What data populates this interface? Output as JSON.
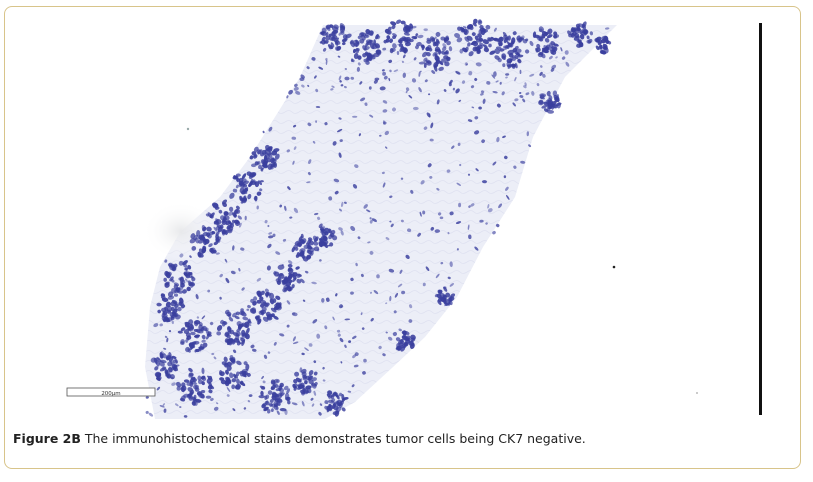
{
  "figure": {
    "caption_lead": "Figure 2B",
    "caption_text": " The immunohistochemical stains demonstrates tumor cells being CK7 negative.",
    "scale_label": "200µm",
    "frame_color": "#d8c48a",
    "stain_color": "#3a3f9e",
    "stroma_color": "#e9ebf5"
  }
}
